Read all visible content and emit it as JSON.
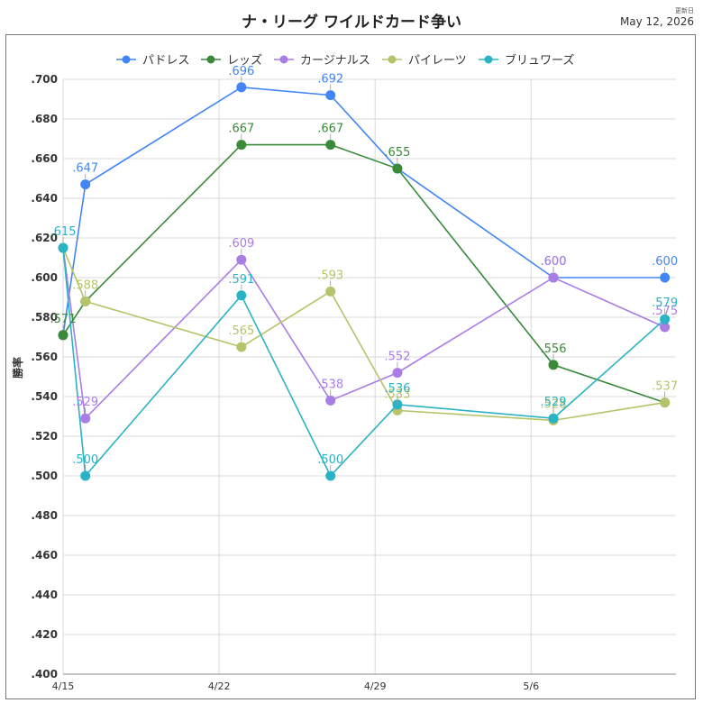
{
  "header": {
    "title": "ナ・リーグ ワイルドカード争い",
    "updated_label": "更新日",
    "updated_date": "May 12, 2026"
  },
  "chart_data": {
    "type": "line",
    "title": "ナ・リーグ ワイルドカード争い",
    "xlabel": "",
    "ylabel": "勝率",
    "ylim": [
      0.4,
      0.7
    ],
    "yticks": [
      ".700",
      ".680",
      ".660",
      ".640",
      ".620",
      ".600",
      ".580",
      ".560",
      ".540",
      ".520",
      ".500",
      ".480",
      ".460",
      ".440",
      ".420",
      ".400"
    ],
    "x_tick_labels": [
      "4/15",
      "4/22",
      "4/29",
      "5/6"
    ],
    "x_tick_days": [
      0,
      7,
      14,
      21
    ],
    "x_range_days": [
      0,
      27.5
    ],
    "grid": true,
    "legend": "top",
    "series": [
      {
        "name": "パドレス",
        "color": "#4285f4",
        "days": [
          0,
          1,
          8,
          12,
          15,
          22,
          27
        ],
        "values": [
          0.571,
          0.647,
          0.696,
          0.692,
          0.655,
          0.6,
          0.6
        ],
        "labels": [
          "",
          ".647",
          ".696",
          ".692",
          "",
          ".600",
          ".600"
        ]
      },
      {
        "name": "レッズ",
        "color": "#3a8a3a",
        "days": [
          0,
          1,
          8,
          12,
          15,
          22,
          27
        ],
        "values": [
          0.571,
          0.588,
          0.667,
          0.667,
          0.655,
          0.556,
          0.537
        ],
        "labels": [
          ".571",
          "",
          ".667",
          ".667",
          ".655",
          ".556",
          ""
        ]
      },
      {
        "name": "カージナルス",
        "color": "#a97ce6",
        "days": [
          0,
          1,
          8,
          12,
          15,
          22,
          27
        ],
        "values": [
          0.615,
          0.529,
          0.609,
          0.538,
          0.552,
          0.6,
          0.575
        ],
        "labels": [
          "",
          ".529",
          ".609",
          ".538",
          ".552",
          ".600",
          ".575"
        ]
      },
      {
        "name": "パイレーツ",
        "color": "#b5c46a",
        "days": [
          0,
          1,
          8,
          12,
          15,
          22,
          27
        ],
        "values": [
          0.615,
          0.588,
          0.565,
          0.593,
          0.533,
          0.528,
          0.537
        ],
        "labels": [
          "",
          ".588",
          ".565",
          ".593",
          ".533",
          ".528",
          ".537"
        ]
      },
      {
        "name": "ブリュワーズ",
        "color": "#2ab3c5",
        "days": [
          0,
          1,
          8,
          12,
          15,
          22,
          27
        ],
        "values": [
          0.615,
          0.5,
          0.591,
          0.5,
          0.536,
          0.529,
          0.579
        ],
        "labels": [
          ".615",
          ".500",
          ".591",
          ".500",
          ".536",
          ".529",
          ".579"
        ]
      }
    ]
  }
}
